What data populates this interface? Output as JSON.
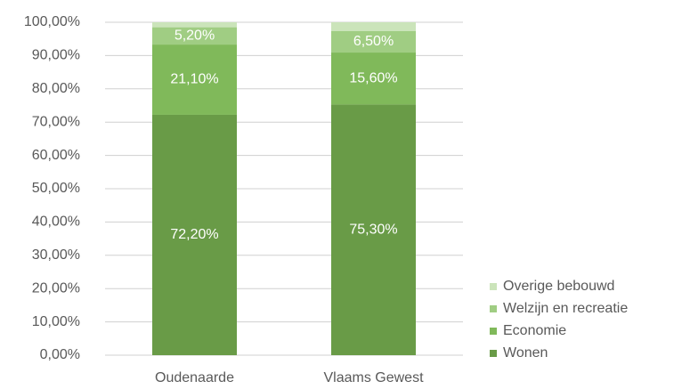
{
  "chart_data": {
    "type": "stacked-bar",
    "categories": [
      "Oudenaarde",
      "Vlaams Gewest"
    ],
    "series": [
      {
        "name": "Wonen",
        "color": "#699b47",
        "values": [
          72.2,
          75.3
        ],
        "value_labels": [
          "72,20%",
          "75,30%"
        ]
      },
      {
        "name": "Economie",
        "color": "#80b95a",
        "values": [
          21.1,
          15.6
        ],
        "value_labels": [
          "21,10%",
          "15,60%"
        ]
      },
      {
        "name": "Welzijn en recreatie",
        "color": "#a0cd83",
        "values": [
          5.2,
          6.5
        ],
        "value_labels": [
          "5,20%",
          "6,50%"
        ]
      },
      {
        "name": "Overige bebouwd",
        "color": "#cbe4ba",
        "values": [
          1.5,
          2.6
        ]
      }
    ],
    "ylim": [
      0,
      100
    ],
    "yticks": [
      {
        "value": 0,
        "label": "0,00%"
      },
      {
        "value": 10,
        "label": "10,00%"
      },
      {
        "value": 20,
        "label": "20,00%"
      },
      {
        "value": 30,
        "label": "30,00%"
      },
      {
        "value": 40,
        "label": "40,00%"
      },
      {
        "value": 50,
        "label": "50,00%"
      },
      {
        "value": 60,
        "label": "60,00%"
      },
      {
        "value": 70,
        "label": "70,00%"
      },
      {
        "value": 80,
        "label": "80,00%"
      },
      {
        "value": 90,
        "label": "90,00%"
      },
      {
        "value": 100,
        "label": "100,00%"
      }
    ],
    "grid": true,
    "legend": "right"
  }
}
